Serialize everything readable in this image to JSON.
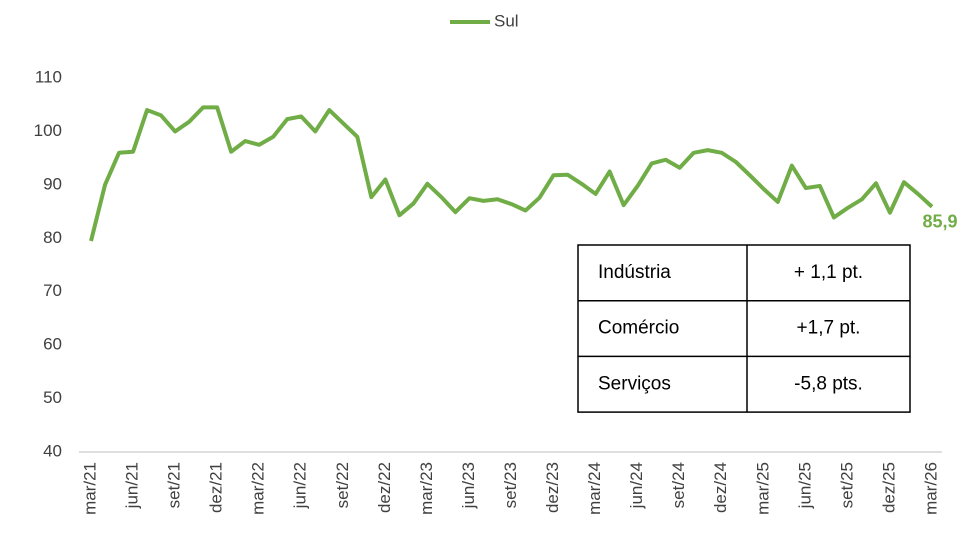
{
  "chart_data": {
    "type": "line",
    "categories": [
      "mar/21",
      null,
      null,
      "jun/21",
      null,
      null,
      "set/21",
      null,
      null,
      "dez/21",
      null,
      null,
      "mar/22",
      null,
      null,
      "jun/22",
      null,
      null,
      "set/22",
      null,
      null,
      "dez/22",
      null,
      null,
      "mar/23",
      null,
      null,
      "jun/23",
      null,
      null,
      "set/23",
      null,
      null,
      "dez/23",
      null,
      null,
      "mar/24",
      null,
      null,
      "jun/24",
      null,
      null,
      "set/24",
      null,
      null,
      "dez/24",
      null,
      null,
      "mar/25",
      null,
      null,
      "jun/25",
      null,
      null,
      "set/25",
      null,
      null,
      "dez/25",
      null,
      null,
      "mar/26"
    ],
    "series": [
      {
        "name": "Sul",
        "color": "#70ad47",
        "values": [
          79.5,
          90,
          96,
          96.2,
          104,
          103,
          100,
          101.8,
          104.5,
          104.5,
          96.2,
          98.2,
          97.5,
          99,
          102.3,
          102.8,
          100,
          104,
          101.5,
          99,
          87.7,
          91,
          84.3,
          86.5,
          90.2,
          87.7,
          84.9,
          87.5,
          87,
          87.3,
          86.4,
          85.2,
          87.6,
          91.8,
          91.9,
          90.2,
          88.3,
          92.5,
          86.2,
          89.8,
          94,
          94.7,
          93.2,
          96,
          96.5,
          96,
          94.3,
          91.8,
          89.2,
          86.8,
          93.6,
          89.4,
          89.8,
          83.9,
          85.7,
          87.3,
          90.3,
          84.8,
          90.5,
          88.3,
          85.9
        ],
        "value_labels": [
          null,
          null,
          null,
          null,
          null,
          null,
          null,
          null,
          null,
          null,
          null,
          null,
          null,
          null,
          null,
          null,
          null,
          null,
          null,
          null,
          null,
          null,
          null,
          null,
          null,
          null,
          null,
          null,
          null,
          null,
          null,
          null,
          null,
          null,
          null,
          null,
          null,
          null,
          null,
          null,
          null,
          null,
          null,
          null,
          null,
          null,
          null,
          null,
          null,
          null,
          null,
          null,
          null,
          null,
          null,
          null,
          null,
          null,
          null,
          null,
          "85,9"
        ]
      }
    ],
    "ylim": [
      40,
      110
    ],
    "yticks": [
      40,
      50,
      60,
      70,
      80,
      90,
      100,
      110
    ],
    "grid": false,
    "legend": "top",
    "table": {
      "rows": [
        [
          "Indústria",
          "+ 1,1 pt."
        ],
        [
          "Comércio",
          "+1,7 pt."
        ],
        [
          "Serviços",
          "-5,8 pts."
        ]
      ]
    }
  }
}
